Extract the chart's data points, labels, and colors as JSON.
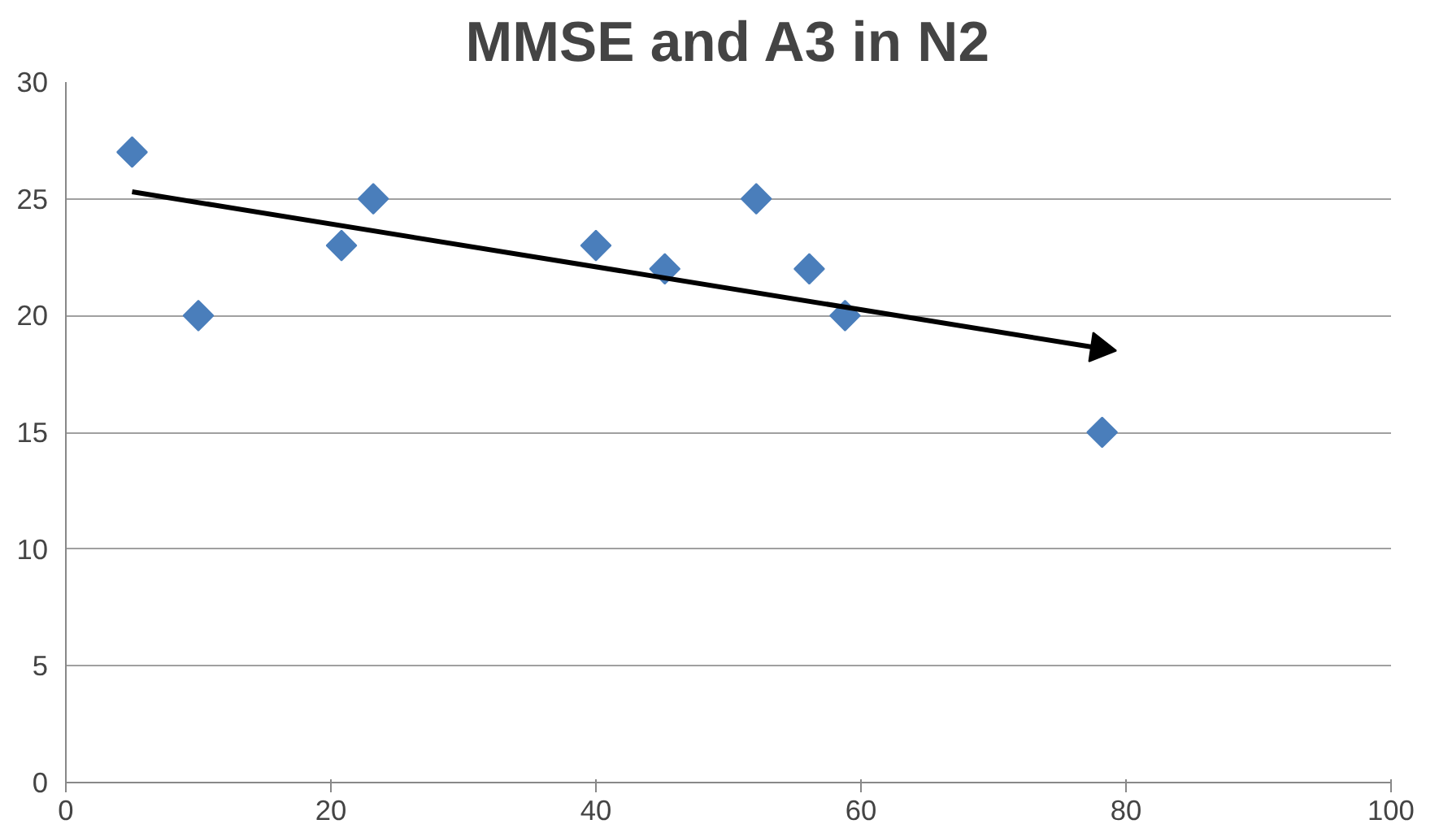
{
  "chart_data": {
    "type": "scatter",
    "title": "MMSE and A3 in N2",
    "grid": "y",
    "xlim": [
      0,
      100
    ],
    "xticks": [
      0,
      20,
      40,
      60,
      80,
      100
    ],
    "ylim": [
      0,
      30
    ],
    "yticks": [
      0,
      5,
      10,
      15,
      20,
      25,
      30
    ],
    "series": [
      {
        "color": "#4a7ebb",
        "marker": "diamond",
        "x": [
          5,
          10,
          20.8,
          23.2,
          40,
          45.2,
          52.1,
          56.1,
          58.8,
          78.2
        ],
        "values": [
          27,
          20,
          23,
          25,
          23,
          22,
          25,
          22,
          20,
          15
        ]
      },
      {
        "type": "line",
        "color": "#000000",
        "x": [
          5,
          78
        ],
        "values": [
          25.3,
          18.6
        ]
      }
    ]
  }
}
